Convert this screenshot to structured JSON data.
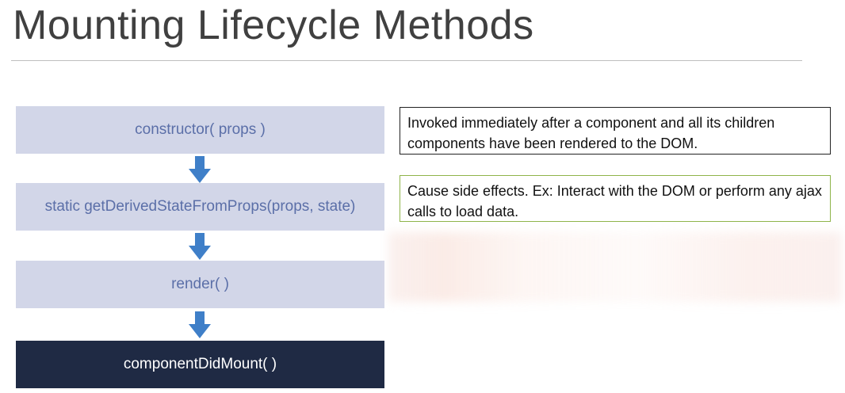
{
  "slide": {
    "title": "Mounting Lifecycle Methods"
  },
  "steps": [
    {
      "label": "constructor( props )"
    },
    {
      "label": "static getDerivedStateFromProps(props, state)"
    },
    {
      "label": "render( )"
    },
    {
      "label": "componentDidMount( )",
      "active": true
    }
  ],
  "notes": {
    "description": "Invoked immediately after a component and all its children components have been rendered to the DOM.",
    "usage": "Cause side effects. Ex: Interact with the DOM or perform any ajax calls to load data."
  },
  "colors": {
    "step_bg": "#d2d6e8",
    "step_text": "#5b6fa8",
    "active_bg": "#1f2a44",
    "arrow": "#3f7fc8",
    "usage_border": "#8fb44a"
  }
}
